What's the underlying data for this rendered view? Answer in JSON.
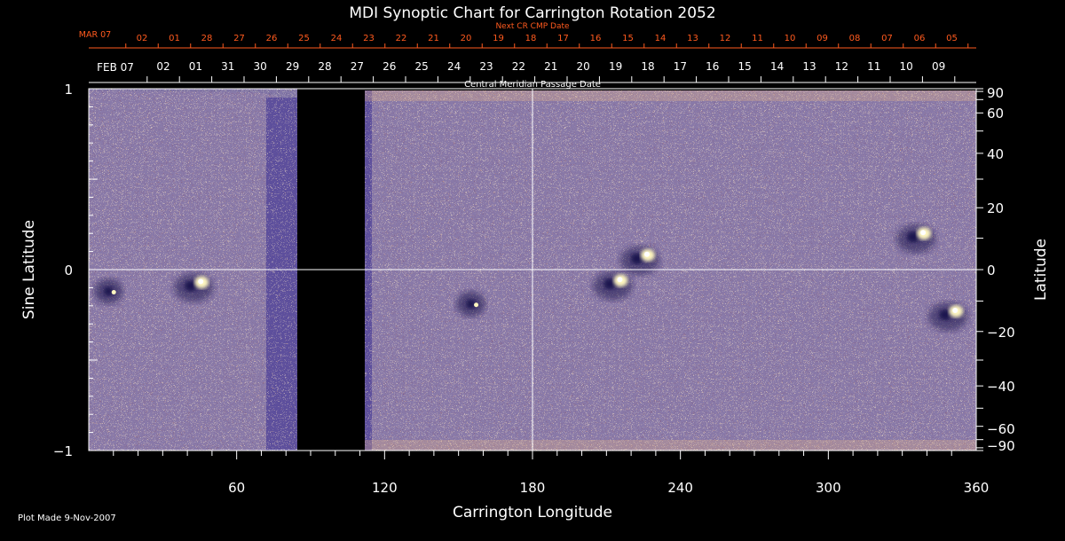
{
  "chart_data": {
    "type": "heatmap",
    "title": "MDI Synoptic Chart for Carrington Rotation 2052",
    "xlabel": "Carrington Longitude",
    "ylabel_left": "Sine Latitude",
    "ylabel_right": "Latitude",
    "x_range": [
      0,
      360
    ],
    "x_ticks": [
      60,
      120,
      180,
      240,
      300,
      360
    ],
    "y_range": [
      -1,
      1
    ],
    "y_ticks_left": [
      "1",
      "0",
      "−1"
    ],
    "y_ticks_right": [
      90,
      60,
      40,
      20,
      0,
      -20,
      -40,
      -60,
      -90
    ],
    "y_tick_labels_right": [
      "90",
      "60",
      "40",
      "20",
      "0",
      "−20",
      "−40",
      "−60",
      "−90"
    ],
    "gridlines": {
      "vertical_longitude": 180,
      "horizontal_sine_latitude": 0
    },
    "top_axis_next_cr": {
      "title": "Next CR CMP Date",
      "first_label": "MAR 07",
      "labels": [
        "02",
        "01",
        "28",
        "27",
        "26",
        "25",
        "24",
        "23",
        "22",
        "21",
        "20",
        "19",
        "18",
        "17",
        "16",
        "15",
        "14",
        "13",
        "12",
        "11",
        "10",
        "09",
        "08",
        "07",
        "06",
        "05"
      ]
    },
    "top_axis_cmp": {
      "title": "Central Meridian Passage Date",
      "first_label": "FEB 07",
      "labels": [
        "02",
        "01",
        "31",
        "30",
        "29",
        "28",
        "27",
        "26",
        "25",
        "24",
        "23",
        "22",
        "21",
        "20",
        "19",
        "18",
        "17",
        "16",
        "15",
        "14",
        "13",
        "12",
        "11",
        "10",
        "09"
      ]
    },
    "data_gap_longitude": [
      84,
      112
    ],
    "colorscale": {
      "background": "#ee5a14",
      "positive": "#fff7c0",
      "negative": "#1a1250"
    },
    "active_regions": [
      {
        "longitude": 44,
        "sine_latitude": -0.08,
        "polarity": "bipolar"
      },
      {
        "longitude": 8,
        "sine_latitude": -0.12,
        "polarity": "negative"
      },
      {
        "longitude": 225,
        "sine_latitude": 0.07,
        "polarity": "bipolar"
      },
      {
        "longitude": 214,
        "sine_latitude": -0.07,
        "polarity": "bipolar"
      },
      {
        "longitude": 337,
        "sine_latitude": 0.19,
        "polarity": "bipolar"
      },
      {
        "longitude": 350,
        "sine_latitude": -0.24,
        "polarity": "bipolar"
      },
      {
        "longitude": 155,
        "sine_latitude": -0.19,
        "polarity": "negative"
      }
    ]
  },
  "footer": {
    "plot_made": "Plot Made  9-Nov-2007"
  }
}
